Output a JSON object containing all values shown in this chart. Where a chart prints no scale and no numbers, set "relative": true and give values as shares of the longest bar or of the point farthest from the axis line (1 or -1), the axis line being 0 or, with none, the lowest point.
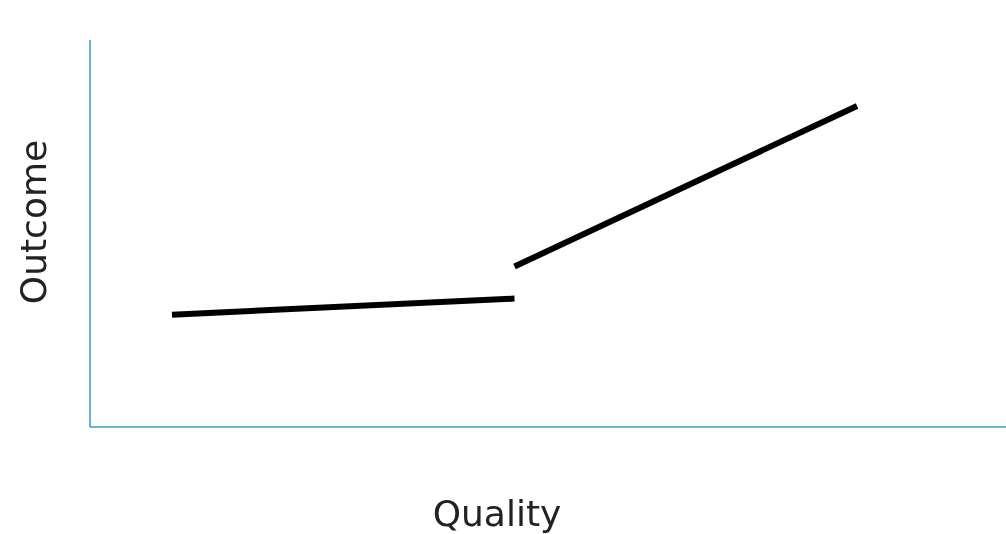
{
  "chart_data": {
    "type": "line",
    "xlabel": "Quality",
    "ylabel": "Outcome",
    "relative": true,
    "categories": [
      null,
      null,
      null
    ],
    "series": [
      {
        "color": "#000000",
        "values": [
          0.35,
          0.4,
          null
        ]
      },
      {
        "color": "#000000",
        "values": [
          null,
          0.5,
          1
        ]
      }
    ]
  }
}
